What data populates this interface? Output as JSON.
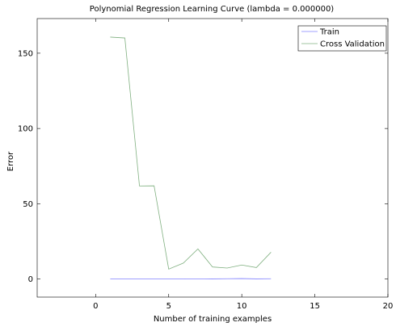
{
  "chart_data": {
    "type": "line",
    "title": "Polynomial Regression Learning Curve (lambda = 0.000000)",
    "xlabel": "Number of training examples",
    "ylabel": "Error",
    "xlim": [
      -4,
      20
    ],
    "ylim": [
      -12,
      173
    ],
    "xticks": [
      0,
      5,
      10,
      15,
      20
    ],
    "yticks": [
      0,
      50,
      100,
      150
    ],
    "grid": false,
    "legend_position": "top-right",
    "series": [
      {
        "name": "Train",
        "color": "#8080ff",
        "x": [
          1,
          2,
          3,
          4,
          5,
          6,
          7,
          8,
          9,
          10,
          11,
          12
        ],
        "y": [
          0.0,
          0.0,
          0.0,
          0.0,
          0.0,
          0.0,
          0.05,
          0.1,
          0.2,
          0.3,
          0.1,
          0.2
        ]
      },
      {
        "name": "Cross Validation",
        "color": "#80b080",
        "x": [
          1,
          2,
          3,
          4,
          5,
          6,
          7,
          8,
          9,
          10,
          11,
          12
        ],
        "y": [
          160.7,
          160.1,
          61.8,
          61.9,
          6.6,
          10.6,
          20.0,
          8.0,
          7.3,
          9.3,
          7.6,
          17.8
        ]
      }
    ]
  }
}
